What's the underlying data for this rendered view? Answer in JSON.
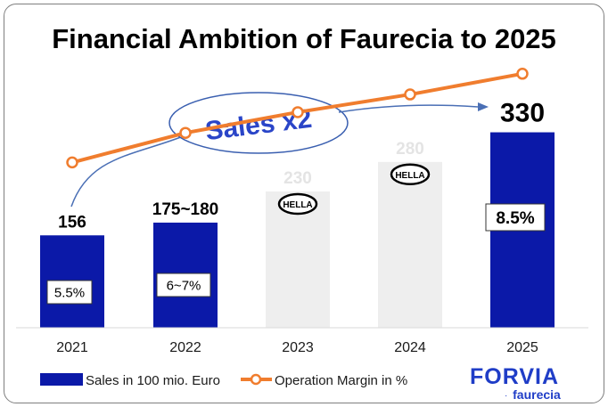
{
  "title": "Financial Ambition of Faurecia to 2025",
  "callout": {
    "text": "Sales x2"
  },
  "brand": {
    "name": "FORVIA",
    "sub": "faurecia"
  },
  "hella_badge": "HELLA",
  "colors": {
    "sales": "#0b19a8",
    "sales_projected": "#eeeeee",
    "margin": "#f07d2e",
    "callout_text": "#2a45c8",
    "callout_stroke": "#3a5fb0"
  },
  "chart_data": {
    "type": "bar",
    "title": "Financial Ambition of Faurecia to 2025",
    "categories": [
      "2021",
      "2022",
      "2023",
      "2024",
      "2025"
    ],
    "series": [
      {
        "name": "Sales in 100 mio. Euro",
        "type": "bar",
        "values": [
          156,
          177.5,
          230,
          280,
          330
        ],
        "labels": [
          "156",
          "175~180",
          "230",
          "280",
          "330"
        ],
        "projected": [
          false,
          false,
          true,
          true,
          false
        ]
      },
      {
        "name": "Operation Margin in %",
        "type": "line",
        "values": [
          5.5,
          6.5,
          7.2,
          7.8,
          8.5
        ],
        "labels": [
          "5.5%",
          "6~7%",
          "",
          "",
          "8.5%"
        ]
      }
    ],
    "legend": "bottom-left",
    "grid": false
  }
}
